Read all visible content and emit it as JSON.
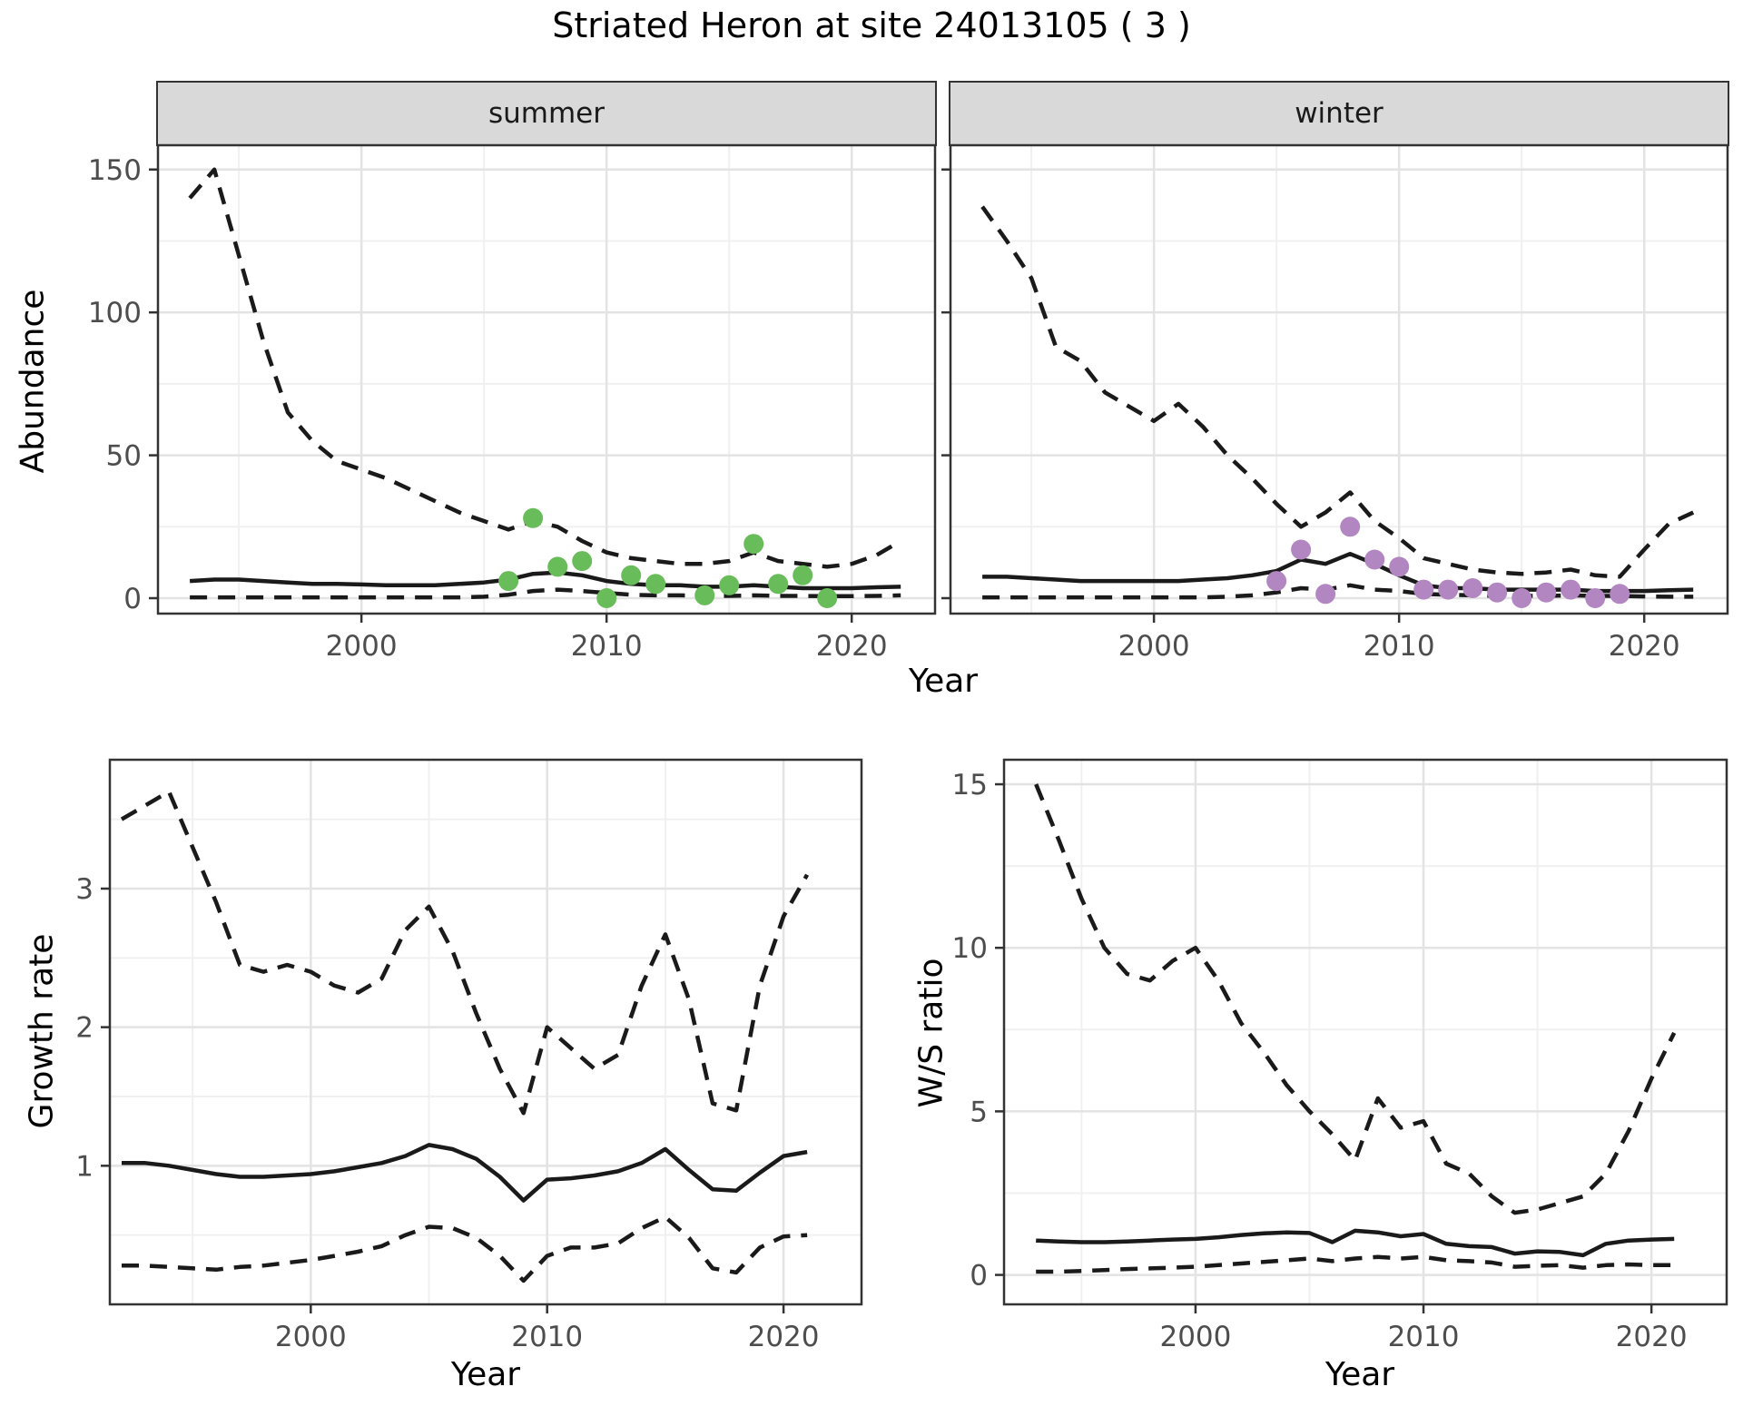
{
  "page": {
    "title": "Striated Heron at site 24013105 ( 3 )"
  },
  "colors": {
    "summer_dot": "#68bc59",
    "winter_dot": "#b286c0",
    "line": "#1a1a1a",
    "panel_border": "#333333",
    "strip_bg": "#d9d9d9",
    "grid_major": "#e3e3e3",
    "grid_minor": "#f0f0f0",
    "tick_label": "#4d4d4d"
  },
  "chart_data": [
    {
      "id": "abundance-summer",
      "type": "line",
      "facet": "summer",
      "xlabel": "Year",
      "ylabel": "Abundance",
      "x_domain": [
        1991.7,
        2023.4
      ],
      "y_domain": [
        -5.4,
        158.5
      ],
      "x_major": [
        2000,
        2010,
        2020
      ],
      "x_minor": [
        1995,
        2005,
        2015
      ],
      "y_major": [
        0,
        50,
        100,
        150
      ],
      "y_minor": [
        25,
        75,
        125
      ],
      "series": [
        {
          "name": "upper-ci",
          "style": "dashed",
          "x": [
            1993,
            1994,
            1995,
            1996,
            1997,
            1998,
            1999,
            2000,
            2001,
            2002,
            2003,
            2004,
            2005,
            2006,
            2007,
            2008,
            2009,
            2010,
            2011,
            2012,
            2013,
            2014,
            2015,
            2016,
            2017,
            2018,
            2019,
            2020,
            2021,
            2022
          ],
          "y": [
            140,
            150,
            120,
            90,
            65,
            55,
            48,
            45,
            42,
            38,
            34,
            30,
            27,
            24,
            27,
            25,
            20,
            16,
            14,
            13,
            12,
            12,
            13,
            16,
            13,
            12,
            11,
            12,
            15,
            20
          ]
        },
        {
          "name": "median",
          "style": "solid",
          "x": [
            1993,
            1994,
            1995,
            1996,
            1997,
            1998,
            1999,
            2000,
            2001,
            2002,
            2003,
            2004,
            2005,
            2006,
            2007,
            2008,
            2009,
            2010,
            2011,
            2012,
            2013,
            2014,
            2015,
            2016,
            2017,
            2018,
            2019,
            2020,
            2021,
            2022
          ],
          "y": [
            6,
            6.5,
            6.5,
            6,
            5.5,
            5,
            5,
            4.8,
            4.5,
            4.5,
            4.5,
            5,
            5.5,
            6.5,
            8.5,
            9,
            8,
            6,
            5,
            4.5,
            4.5,
            4,
            4,
            4.5,
            4,
            3.5,
            3.5,
            3.5,
            3.8,
            4
          ]
        },
        {
          "name": "lower-ci",
          "style": "dashed",
          "x": [
            1993,
            1994,
            1995,
            1996,
            1997,
            1998,
            1999,
            2000,
            2001,
            2002,
            2003,
            2004,
            2005,
            2006,
            2007,
            2008,
            2009,
            2010,
            2011,
            2012,
            2013,
            2014,
            2015,
            2016,
            2017,
            2018,
            2019,
            2020,
            2021,
            2022
          ],
          "y": [
            0.3,
            0.3,
            0.3,
            0.3,
            0.3,
            0.3,
            0.3,
            0.3,
            0.3,
            0.3,
            0.3,
            0.3,
            0.5,
            1.2,
            2.5,
            3,
            2.5,
            1.8,
            1.2,
            1,
            1,
            0.8,
            0.8,
            1,
            0.8,
            0.8,
            0.7,
            0.7,
            0.8,
            1
          ]
        }
      ],
      "points": {
        "name": "summer-observations",
        "color": "#68bc59",
        "x": [
          2006,
          2007,
          2008,
          2009,
          2010,
          2011,
          2012,
          2014,
          2015,
          2016,
          2017,
          2018,
          2019
        ],
        "y": [
          6,
          28,
          11,
          13,
          0,
          8,
          5,
          1,
          4.5,
          19,
          5,
          8,
          0
        ]
      }
    },
    {
      "id": "abundance-winter",
      "type": "line",
      "facet": "winter",
      "xlabel": "",
      "ylabel": "",
      "x_domain": [
        1991.7,
        2023.4
      ],
      "y_domain": [
        -5.4,
        158.5
      ],
      "x_major": [
        2000,
        2010,
        2020
      ],
      "x_minor": [
        1995,
        2005,
        2015
      ],
      "y_major": [
        0,
        50,
        100,
        150
      ],
      "y_minor": [
        25,
        75,
        125
      ],
      "hide_y_labels": true,
      "series": [
        {
          "name": "upper-ci",
          "style": "dashed",
          "x": [
            1993,
            1994,
            1995,
            1996,
            1997,
            1998,
            1999,
            2000,
            2001,
            2002,
            2003,
            2004,
            2005,
            2006,
            2007,
            2008,
            2009,
            2010,
            2011,
            2012,
            2013,
            2014,
            2015,
            2016,
            2017,
            2018,
            2019,
            2020,
            2021,
            2022
          ],
          "y": [
            137,
            125,
            112,
            88,
            83,
            72,
            67,
            62,
            68,
            60,
            50,
            42,
            33,
            25,
            30,
            37,
            27,
            21,
            14,
            12,
            10,
            9,
            8.5,
            9,
            10,
            8,
            7.5,
            17,
            26,
            30
          ]
        },
        {
          "name": "median",
          "style": "solid",
          "x": [
            1993,
            1994,
            1995,
            1996,
            1997,
            1998,
            1999,
            2000,
            2001,
            2002,
            2003,
            2004,
            2005,
            2006,
            2007,
            2008,
            2009,
            2010,
            2011,
            2012,
            2013,
            2014,
            2015,
            2016,
            2017,
            2018,
            2019,
            2020,
            2021,
            2022
          ],
          "y": [
            7.5,
            7.5,
            7,
            6.5,
            6,
            6,
            6,
            6,
            6,
            6.5,
            7,
            8,
            9.5,
            13.5,
            12,
            15.5,
            12,
            8,
            4.5,
            3.5,
            3.5,
            3,
            3,
            3,
            3,
            2.5,
            2.5,
            2.5,
            2.8,
            3
          ]
        },
        {
          "name": "lower-ci",
          "style": "dashed",
          "x": [
            1993,
            1994,
            1995,
            1996,
            1997,
            1998,
            1999,
            2000,
            2001,
            2002,
            2003,
            2004,
            2005,
            2006,
            2007,
            2008,
            2009,
            2010,
            2011,
            2012,
            2013,
            2014,
            2015,
            2016,
            2017,
            2018,
            2019,
            2020,
            2021,
            2022
          ],
          "y": [
            0.3,
            0.3,
            0.3,
            0.3,
            0.3,
            0.3,
            0.3,
            0.3,
            0.3,
            0.3,
            0.5,
            1,
            2,
            3.5,
            3,
            4.5,
            3,
            2.5,
            1.5,
            1.2,
            1,
            0.8,
            0.8,
            0.8,
            1,
            0.8,
            0.8,
            0.6,
            0.5,
            0.5
          ]
        }
      ],
      "points": {
        "name": "winter-observations",
        "color": "#b286c0",
        "x": [
          2005,
          2006,
          2007,
          2008,
          2009,
          2010,
          2011,
          2012,
          2013,
          2014,
          2015,
          2016,
          2017,
          2018,
          2019
        ],
        "y": [
          6,
          17,
          1.5,
          25,
          13.5,
          11,
          3,
          3,
          3.5,
          2,
          0,
          2,
          3,
          0,
          1.5
        ]
      }
    },
    {
      "id": "growth-rate",
      "type": "line",
      "xlabel": "Year",
      "ylabel": "Growth rate",
      "x_domain": [
        1991.5,
        2023.3
      ],
      "y_domain": [
        0,
        3.93
      ],
      "x_major": [
        2000,
        2010,
        2020
      ],
      "x_minor": [
        1995,
        2005,
        2015
      ],
      "y_major": [
        1,
        2,
        3
      ],
      "y_minor": [
        0.5,
        1.5,
        2.5,
        3.5
      ],
      "series": [
        {
          "name": "upper-ci",
          "style": "dashed",
          "x": [
            1992,
            1993,
            1994,
            1995,
            1996,
            1997,
            1998,
            1999,
            2000,
            2001,
            2002,
            2003,
            2004,
            2005,
            2006,
            2007,
            2008,
            2009,
            2010,
            2011,
            2012,
            2013,
            2014,
            2015,
            2016,
            2017,
            2018,
            2019,
            2020,
            2021
          ],
          "y": [
            3.5,
            3.6,
            3.7,
            3.3,
            2.9,
            2.45,
            2.4,
            2.45,
            2.4,
            2.3,
            2.25,
            2.35,
            2.7,
            2.87,
            2.55,
            2.1,
            1.7,
            1.38,
            2.0,
            1.85,
            1.7,
            1.8,
            2.3,
            2.67,
            2.2,
            1.45,
            1.4,
            2.3,
            2.8,
            3.1
          ]
        },
        {
          "name": "median",
          "style": "solid",
          "x": [
            1992,
            1993,
            1994,
            1995,
            1996,
            1997,
            1998,
            1999,
            2000,
            2001,
            2002,
            2003,
            2004,
            2005,
            2006,
            2007,
            2008,
            2009,
            2010,
            2011,
            2012,
            2013,
            2014,
            2015,
            2016,
            2017,
            2018,
            2019,
            2020,
            2021
          ],
          "y": [
            1.02,
            1.02,
            1.0,
            0.97,
            0.94,
            0.92,
            0.92,
            0.93,
            0.94,
            0.96,
            0.99,
            1.02,
            1.07,
            1.15,
            1.12,
            1.05,
            0.92,
            0.75,
            0.9,
            0.91,
            0.93,
            0.96,
            1.02,
            1.12,
            0.97,
            0.83,
            0.82,
            0.95,
            1.07,
            1.1
          ]
        },
        {
          "name": "lower-ci",
          "style": "dashed",
          "x": [
            1992,
            1993,
            1994,
            1995,
            1996,
            1997,
            1998,
            1999,
            2000,
            2001,
            2002,
            2003,
            2004,
            2005,
            2006,
            2007,
            2008,
            2009,
            2010,
            2011,
            2012,
            2013,
            2014,
            2015,
            2016,
            2017,
            2018,
            2019,
            2020,
            2021
          ],
          "y": [
            0.28,
            0.28,
            0.27,
            0.26,
            0.25,
            0.27,
            0.28,
            0.3,
            0.32,
            0.35,
            0.38,
            0.42,
            0.5,
            0.56,
            0.55,
            0.48,
            0.35,
            0.17,
            0.35,
            0.41,
            0.41,
            0.44,
            0.55,
            0.63,
            0.48,
            0.26,
            0.23,
            0.41,
            0.49,
            0.5
          ]
        }
      ]
    },
    {
      "id": "ws-ratio",
      "type": "line",
      "xlabel": "Year",
      "ylabel": "W/S ratio",
      "x_domain": [
        1991.6,
        2023.3
      ],
      "y_domain": [
        -0.9,
        15.75
      ],
      "x_major": [
        2000,
        2010,
        2020
      ],
      "x_minor": [
        1995,
        2005,
        2015
      ],
      "y_major": [
        0,
        5,
        10,
        15
      ],
      "y_minor": [
        2.5,
        7.5,
        12.5
      ],
      "series": [
        {
          "name": "upper-ci",
          "style": "dashed",
          "x": [
            1993,
            1994,
            1995,
            1996,
            1997,
            1998,
            1999,
            2000,
            2001,
            2002,
            2003,
            2004,
            2005,
            2006,
            2007,
            2008,
            2009,
            2010,
            2011,
            2012,
            2013,
            2014,
            2015,
            2016,
            2017,
            2018,
            2019,
            2020,
            2021
          ],
          "y": [
            15.0,
            13.3,
            11.5,
            10.0,
            9.2,
            9.0,
            9.6,
            10.0,
            9.0,
            7.7,
            6.8,
            5.8,
            5.0,
            4.3,
            3.5,
            5.4,
            4.5,
            4.7,
            3.4,
            3.1,
            2.4,
            1.9,
            2.0,
            2.2,
            2.4,
            3.1,
            4.4,
            6.0,
            7.4
          ]
        },
        {
          "name": "median",
          "style": "solid",
          "x": [
            1993,
            1994,
            1995,
            1996,
            1997,
            1998,
            1999,
            2000,
            2001,
            2002,
            2003,
            2004,
            2005,
            2006,
            2007,
            2008,
            2009,
            2010,
            2011,
            2012,
            2013,
            2014,
            2015,
            2016,
            2017,
            2018,
            2019,
            2020,
            2021
          ],
          "y": [
            1.05,
            1.02,
            1.0,
            1.0,
            1.02,
            1.05,
            1.08,
            1.1,
            1.15,
            1.22,
            1.27,
            1.3,
            1.28,
            1.0,
            1.35,
            1.3,
            1.18,
            1.25,
            0.95,
            0.88,
            0.85,
            0.65,
            0.72,
            0.7,
            0.6,
            0.95,
            1.05,
            1.08,
            1.1
          ]
        },
        {
          "name": "lower-ci",
          "style": "dashed",
          "x": [
            1993,
            1994,
            1995,
            1996,
            1997,
            1998,
            1999,
            2000,
            2001,
            2002,
            2003,
            2004,
            2005,
            2006,
            2007,
            2008,
            2009,
            2010,
            2011,
            2012,
            2013,
            2014,
            2015,
            2016,
            2017,
            2018,
            2019,
            2020,
            2021
          ],
          "y": [
            0.1,
            0.1,
            0.12,
            0.15,
            0.18,
            0.2,
            0.22,
            0.25,
            0.3,
            0.35,
            0.4,
            0.45,
            0.5,
            0.42,
            0.5,
            0.55,
            0.5,
            0.55,
            0.45,
            0.42,
            0.38,
            0.25,
            0.28,
            0.3,
            0.22,
            0.3,
            0.32,
            0.3,
            0.3
          ]
        }
      ]
    }
  ]
}
